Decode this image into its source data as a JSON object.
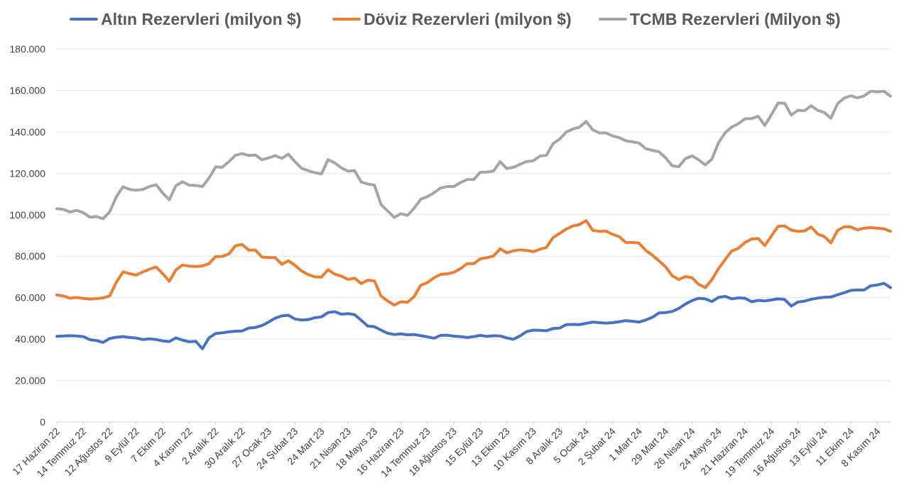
{
  "chart_data": {
    "type": "line",
    "title": "",
    "xlabel": "",
    "ylabel": "",
    "ylim": [
      0,
      180000
    ],
    "yticks": [
      0,
      20000,
      40000,
      60000,
      80000,
      100000,
      120000,
      140000,
      160000,
      180000
    ],
    "ytick_labels": [
      "0",
      "20.000",
      "40.000",
      "60.000",
      "80.000",
      "100.000",
      "120.000",
      "140.000",
      "160.000",
      "180.000"
    ],
    "grid": true,
    "legend_position": "top",
    "x_tick_labels": [
      {
        "index": 0,
        "label": "17 Haziran 22"
      },
      {
        "index": 4,
        "label": "14 Temmuz 22"
      },
      {
        "index": 8,
        "label": "12 Ağustos 22"
      },
      {
        "index": 12,
        "label": "9 Eylül 22"
      },
      {
        "index": 16,
        "label": "7 Ekim 22"
      },
      {
        "index": 20,
        "label": "4 Kasım 22"
      },
      {
        "index": 24,
        "label": "2 Aralık 22"
      },
      {
        "index": 28,
        "label": "30 Aralık 22"
      },
      {
        "index": 32,
        "label": "27 Ocak 23"
      },
      {
        "index": 36,
        "label": "24 Şubat 23"
      },
      {
        "index": 40,
        "label": "24 Mart 23"
      },
      {
        "index": 44,
        "label": "21 Nisan 23"
      },
      {
        "index": 48,
        "label": "18 Mayıs 23"
      },
      {
        "index": 52,
        "label": "16 Haziran 23"
      },
      {
        "index": 56,
        "label": "14 Temmuz 23"
      },
      {
        "index": 60,
        "label": "18 Ağustos 23"
      },
      {
        "index": 64,
        "label": "15 Eylül 23"
      },
      {
        "index": 68,
        "label": "13 Ekim 23"
      },
      {
        "index": 72,
        "label": "10 Kasım 23"
      },
      {
        "index": 76,
        "label": "8 Aralık 23"
      },
      {
        "index": 80,
        "label": "5 Ocak 24"
      },
      {
        "index": 84,
        "label": "2 Şubat 24"
      },
      {
        "index": 88,
        "label": "1 Mart 24"
      },
      {
        "index": 92,
        "label": "29 Mart 24"
      },
      {
        "index": 96,
        "label": "26 Nisan 24"
      },
      {
        "index": 100,
        "label": "24 Mayıs 24"
      },
      {
        "index": 104,
        "label": "21 Haziran 24"
      },
      {
        "index": 108,
        "label": "19 Temmuz 24"
      },
      {
        "index": 112,
        "label": "16 Ağustos 24"
      },
      {
        "index": 116,
        "label": "13 Eylül 24"
      },
      {
        "index": 120,
        "label": "11 Ekim 24"
      },
      {
        "index": 124,
        "label": "8 Kasım 24"
      }
    ],
    "series": [
      {
        "name": "Altın Rezervleri (milyon $)",
        "color": "#4472c4",
        "values": [
          41300,
          41500,
          41600,
          41500,
          41200,
          39700,
          39300,
          38400,
          40300,
          40900,
          41200,
          40800,
          40500,
          39800,
          40100,
          39800,
          39100,
          38800,
          40600,
          39500,
          38700,
          38900,
          35300,
          40600,
          42700,
          43000,
          43500,
          43800,
          43900,
          45300,
          45600,
          46500,
          48200,
          50100,
          51200,
          51500,
          49700,
          49200,
          49400,
          50300,
          50700,
          52800,
          53200,
          52000,
          52300,
          51800,
          49100,
          46300,
          46000,
          44300,
          42800,
          42200,
          42500,
          42100,
          42200,
          41600,
          41100,
          40400,
          41800,
          41900,
          41400,
          41200,
          40800,
          41200,
          41800,
          41300,
          41600,
          41500,
          40600,
          39900,
          41500,
          43600,
          44300,
          44200,
          44000,
          45100,
          45300,
          47000,
          47100,
          47000,
          47600,
          48200,
          47900,
          47700,
          47900,
          48400,
          48900,
          48600,
          48200,
          49200,
          50500,
          52600,
          52800,
          53300,
          54800,
          56900,
          58600,
          59700,
          59400,
          58100,
          60100,
          60600,
          59400,
          59900,
          59700,
          58000,
          58700,
          58400,
          58900,
          59400,
          59100,
          55900,
          57900,
          58300,
          59200,
          59800,
          60200,
          60300,
          61400,
          62400,
          63500,
          63700,
          63700,
          65700,
          66100,
          66900,
          64800
        ]
      },
      {
        "name": "Döviz Rezervleri (milyon $)",
        "color": "#ed7d31",
        "values": [
          61300,
          60800,
          59700,
          60100,
          59600,
          59300,
          59500,
          59900,
          60800,
          67500,
          72400,
          71600,
          70900,
          72400,
          73700,
          74800,
          71600,
          67900,
          73400,
          75700,
          75200,
          75000,
          75300,
          76400,
          79800,
          79900,
          81100,
          85000,
          85700,
          82900,
          83000,
          79600,
          79300,
          79300,
          76100,
          77800,
          75600,
          72900,
          71100,
          70000,
          69900,
          73500,
          71300,
          70400,
          68800,
          69400,
          66800,
          68400,
          68100,
          60800,
          58400,
          56400,
          58000,
          57800,
          60500,
          66000,
          67200,
          69600,
          71200,
          71500,
          72200,
          74000,
          76400,
          76400,
          78700,
          79300,
          80100,
          83600,
          81600,
          82600,
          83100,
          82800,
          82200,
          83300,
          84300,
          89000,
          91000,
          93100,
          94600,
          95300,
          97200,
          92500,
          92000,
          92100,
          90500,
          89400,
          86600,
          86600,
          86300,
          82800,
          80500,
          77800,
          74900,
          70600,
          68700,
          70200,
          69600,
          66400,
          64800,
          68600,
          73900,
          78400,
          82500,
          83800,
          86600,
          88300,
          88500,
          85100,
          89800,
          94400,
          94600,
          92600,
          92000,
          92200,
          94100,
          90700,
          89500,
          86400,
          92500,
          94200,
          94100,
          92700,
          93500,
          93800,
          93500,
          93200,
          92000
        ]
      },
      {
        "name": "TCMB Rezervleri (Milyon $)",
        "color": "#a5a5a5",
        "values": [
          102900,
          102600,
          101300,
          102100,
          101000,
          98800,
          99100,
          98100,
          101400,
          108700,
          113500,
          112200,
          111800,
          112200,
          113600,
          114500,
          110500,
          107200,
          114000,
          115900,
          114300,
          114100,
          113600,
          117700,
          123100,
          122900,
          125600,
          128700,
          129500,
          128600,
          128800,
          126500,
          127400,
          128500,
          127200,
          129200,
          125600,
          122400,
          121200,
          120300,
          119700,
          126600,
          125000,
          122600,
          121000,
          121300,
          115800,
          114800,
          114300,
          104900,
          101800,
          98700,
          100500,
          99700,
          103100,
          107500,
          108700,
          110600,
          112900,
          113600,
          113600,
          115500,
          117000,
          117000,
          120500,
          120600,
          121100,
          125600,
          122300,
          122900,
          124300,
          125700,
          126000,
          128300,
          128700,
          134300,
          136500,
          139900,
          141400,
          142300,
          145000,
          141000,
          139500,
          139500,
          138000,
          137200,
          135700,
          135200,
          134600,
          131900,
          131100,
          130400,
          127500,
          123600,
          123200,
          127100,
          128400,
          126500,
          124000,
          126800,
          134700,
          139600,
          142300,
          143900,
          146300,
          146400,
          147500,
          143100,
          148300,
          153900,
          153800,
          148100,
          150400,
          150200,
          152600,
          150400,
          149300,
          146600,
          153700,
          156300,
          157400,
          156400,
          157300,
          159600,
          159300,
          159600,
          157200
        ]
      }
    ]
  }
}
